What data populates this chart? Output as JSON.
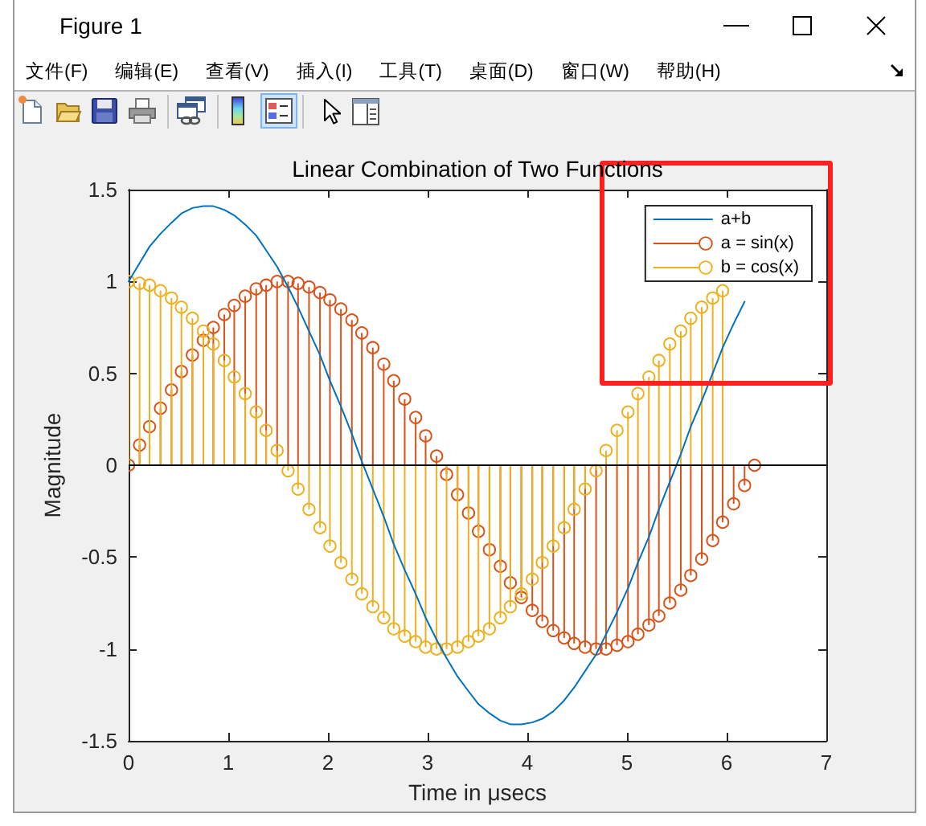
{
  "chart_data": {
    "type": "lollipop",
    "title": "Linear Combination of Two Functions",
    "xlabel": "Time in μsecs",
    "ylabel": "Magnitude",
    "x": [
      0,
      0.11,
      0.21,
      0.32,
      0.43,
      0.53,
      0.64,
      0.75,
      0.85,
      0.96,
      1.06,
      1.17,
      1.28,
      1.38,
      1.49,
      1.6,
      1.7,
      1.81,
      1.92,
      2.02,
      2.13,
      2.24,
      2.34,
      2.45,
      2.56,
      2.66,
      2.77,
      2.88,
      2.98,
      3.09,
      3.19,
      3.3,
      3.41,
      3.51,
      3.62,
      3.73,
      3.83,
      3.94,
      4.05,
      4.15,
      4.26,
      4.37,
      4.47,
      4.58,
      4.69,
      4.79,
      4.9,
      5.01,
      5.11,
      5.22,
      5.32,
      5.43,
      5.54,
      5.64,
      5.75,
      5.86,
      5.96,
      6.07,
      6.18,
      6.28
    ],
    "series": [
      {
        "name": "a+b",
        "type": "line",
        "marker": "none",
        "color": "#0072bd",
        "values": [
          1,
          1.1,
          1.19,
          1.26,
          1.32,
          1.37,
          1.4,
          1.41,
          1.41,
          1.39,
          1.36,
          1.31,
          1.25,
          1.17,
          1.08,
          0.97,
          0.86,
          0.73,
          0.6,
          0.46,
          0.32,
          0.17,
          0.02,
          -0.13,
          -0.28,
          -0.43,
          -0.57,
          -0.7,
          -0.83,
          -0.95,
          -1.05,
          -1.15,
          -1.23,
          -1.3,
          -1.35,
          -1.39,
          -1.41,
          -1.41,
          -1.4,
          -1.38,
          -1.34,
          -1.28,
          -1.21,
          -1.12,
          -1.03,
          -0.92,
          -0.8,
          -0.67,
          -0.53,
          -0.39,
          -0.24,
          -0.09,
          0.06,
          0.21,
          0.35,
          0.5,
          0.64,
          0.77,
          0.89,
          null
        ]
      },
      {
        "name": "a = sin(x)",
        "color": "#d95319",
        "values": [
          0,
          0.11,
          0.21,
          0.31,
          0.41,
          0.51,
          0.6,
          0.68,
          0.75,
          0.82,
          0.87,
          0.92,
          0.96,
          0.98,
          1,
          1,
          0.99,
          0.97,
          0.94,
          0.9,
          0.85,
          0.79,
          0.72,
          0.64,
          0.55,
          0.46,
          0.36,
          0.26,
          0.16,
          0.05,
          -0.05,
          -0.16,
          -0.26,
          -0.36,
          -0.46,
          -0.55,
          -0.64,
          -0.72,
          -0.79,
          -0.85,
          -0.9,
          -0.94,
          -0.97,
          -0.99,
          -1,
          -1,
          -0.98,
          -0.96,
          -0.92,
          -0.87,
          -0.82,
          -0.75,
          -0.68,
          -0.6,
          -0.51,
          -0.41,
          -0.31,
          -0.21,
          -0.11,
          0
        ]
      },
      {
        "name": "b = cos(x)",
        "color": "#edb120",
        "values": [
          1,
          0.99,
          0.98,
          0.95,
          0.91,
          0.86,
          0.8,
          0.73,
          0.66,
          0.57,
          0.48,
          0.39,
          0.29,
          0.19,
          0.08,
          -0.03,
          -0.13,
          -0.24,
          -0.34,
          -0.44,
          -0.53,
          -0.62,
          -0.7,
          -0.77,
          -0.83,
          -0.89,
          -0.93,
          -0.96,
          -0.99,
          -1,
          -1,
          -0.99,
          -0.96,
          -0.93,
          -0.89,
          -0.83,
          -0.77,
          -0.7,
          -0.62,
          -0.53,
          -0.44,
          -0.34,
          -0.24,
          -0.13,
          -0.03,
          0.08,
          0.19,
          0.29,
          0.39,
          0.48,
          0.57,
          0.66,
          0.73,
          0.8,
          0.86,
          0.91,
          0.95,
          null,
          null,
          null
        ]
      }
    ],
    "marker": "circle",
    "xlim": [
      0,
      7
    ],
    "ylim": [
      -1.5,
      1.5
    ],
    "xticks": [
      0,
      1,
      2,
      3,
      4,
      5,
      6,
      7
    ],
    "yticks": [
      -1.5,
      -1,
      -0.5,
      0,
      0.5,
      1,
      1.5
    ],
    "legend": "top right",
    "ref_lines": [
      {
        "axis": "y",
        "value": 0,
        "color": "#000000"
      }
    ],
    "annotations": [
      "Figure 1",
      "文件(F)",
      "编辑(E)",
      "查看(V)",
      "插入(I)",
      "工具(T)",
      "桌面(D)",
      "窗口(W)",
      "帮助(H)"
    ]
  }
}
